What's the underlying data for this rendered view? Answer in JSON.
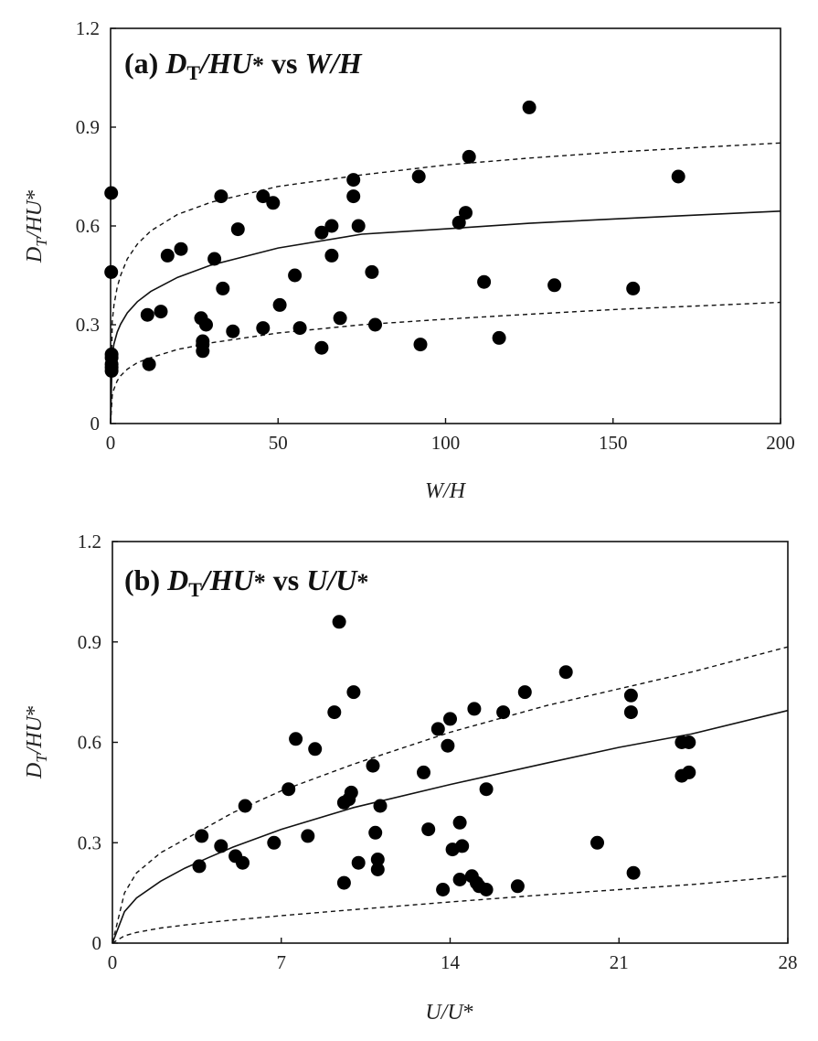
{
  "chart_data": [
    {
      "type": "scatter",
      "panel": "a",
      "title": "(a) DT/HU* vs W/H",
      "title_parts": {
        "prefix": "(a) ",
        "D": "D",
        "T": "T",
        "slash_HU": "/HU",
        "star": "*",
        "vs": " vs ",
        "x": "W/H"
      },
      "xlabel": "W/H",
      "ylabel": "DT/HU*",
      "ylabel_parts": {
        "D": "D",
        "T": "T",
        "rest": "/HU",
        "star": "*"
      },
      "xlim": [
        0,
        200
      ],
      "ylim": [
        0,
        1.2
      ],
      "xticks": [
        0,
        50,
        100,
        150,
        200
      ],
      "xtick_labels": [
        "0",
        "50",
        "100",
        "150",
        "200"
      ],
      "yticks": [
        0,
        0.3,
        0.6,
        0.9,
        1.2
      ],
      "ytick_labels": [
        "0",
        "0.3",
        "0.6",
        "0.9",
        "1.2"
      ],
      "grid": false,
      "marker_color": "#000000",
      "points": [
        [
          0.2,
          0.7
        ],
        [
          0.2,
          0.46
        ],
        [
          0.3,
          0.21
        ],
        [
          0.3,
          0.2
        ],
        [
          0.3,
          0.18
        ],
        [
          0.3,
          0.17
        ],
        [
          0.3,
          0.16
        ],
        [
          11,
          0.33
        ],
        [
          11.5,
          0.18
        ],
        [
          15,
          0.34
        ],
        [
          17,
          0.51
        ],
        [
          21,
          0.53
        ],
        [
          27,
          0.32
        ],
        [
          27.5,
          0.25
        ],
        [
          27.5,
          0.24
        ],
        [
          27.5,
          0.22
        ],
        [
          28.5,
          0.3
        ],
        [
          31,
          0.5
        ],
        [
          33,
          0.69
        ],
        [
          33.5,
          0.41
        ],
        [
          36.5,
          0.28
        ],
        [
          38,
          0.59
        ],
        [
          45.5,
          0.69
        ],
        [
          45.5,
          0.29
        ],
        [
          48.5,
          0.67
        ],
        [
          50.5,
          0.36
        ],
        [
          55,
          0.45
        ],
        [
          56.5,
          0.29
        ],
        [
          63,
          0.58
        ],
        [
          63,
          0.23
        ],
        [
          66,
          0.6
        ],
        [
          66,
          0.51
        ],
        [
          68.5,
          0.32
        ],
        [
          72.5,
          0.74
        ],
        [
          72.5,
          0.69
        ],
        [
          74,
          0.6
        ],
        [
          78,
          0.46
        ],
        [
          79,
          0.3
        ],
        [
          92,
          0.75
        ],
        [
          92.5,
          0.24
        ],
        [
          104,
          0.61
        ],
        [
          106,
          0.64
        ],
        [
          107,
          0.81
        ],
        [
          111.5,
          0.43
        ],
        [
          116,
          0.26
        ],
        [
          125,
          0.96
        ],
        [
          132.5,
          0.42
        ],
        [
          156,
          0.41
        ],
        [
          169.5,
          0.75
        ]
      ],
      "curves": [
        {
          "style": "solid",
          "x": [
            0,
            0.5,
            1,
            2,
            3,
            5,
            8,
            12,
            20,
            30,
            50,
            75,
            100,
            125,
            150,
            175,
            200
          ],
          "y": [
            0,
            0.209,
            0.242,
            0.278,
            0.302,
            0.336,
            0.37,
            0.401,
            0.444,
            0.481,
            0.533,
            0.575,
            0.591,
            0.608,
            0.621,
            0.633,
            0.645
          ]
        },
        {
          "style": "dashed",
          "x": [
            0,
            0.5,
            1,
            2,
            3,
            5,
            8,
            12,
            20,
            30,
            50,
            75,
            100,
            125,
            150,
            175,
            200
          ],
          "y": [
            0,
            0.31,
            0.36,
            0.415,
            0.45,
            0.5,
            0.545,
            0.585,
            0.635,
            0.672,
            0.72,
            0.755,
            0.785,
            0.806,
            0.824,
            0.838,
            0.852
          ]
        },
        {
          "style": "dashed",
          "x": [
            0,
            0.5,
            1,
            2,
            3,
            5,
            8,
            12,
            20,
            30,
            50,
            75,
            100,
            125,
            150,
            175,
            200
          ],
          "y": [
            0,
            0.085,
            0.105,
            0.13,
            0.145,
            0.165,
            0.185,
            0.2,
            0.225,
            0.245,
            0.275,
            0.3,
            0.317,
            0.332,
            0.346,
            0.357,
            0.368
          ]
        }
      ]
    },
    {
      "type": "scatter",
      "panel": "b",
      "title": "(b) DT/HU* vs U/U*",
      "title_parts": {
        "prefix": "(b) ",
        "D": "D",
        "T": "T",
        "slash_HU": "/HU",
        "star": "*",
        "vs": " vs ",
        "x": "U/U",
        "x_star": "*"
      },
      "xlabel": "U/U*",
      "xlabel_parts": {
        "base": "U/U",
        "star": "*"
      },
      "ylabel": "DT/HU*",
      "ylabel_parts": {
        "D": "D",
        "T": "T",
        "rest": "/HU",
        "star": "*"
      },
      "xlim": [
        0,
        28
      ],
      "ylim": [
        0,
        1.2
      ],
      "xticks": [
        0,
        7,
        14,
        21,
        28
      ],
      "xtick_labels": [
        "0",
        "7",
        "14",
        "21",
        "28"
      ],
      "yticks": [
        0,
        0.3,
        0.6,
        0.9,
        1.2
      ],
      "ytick_labels": [
        "0",
        "0.3",
        "0.6",
        "0.9",
        "1.2"
      ],
      "grid": false,
      "marker_color": "#000000",
      "points": [
        [
          3.7,
          0.32
        ],
        [
          3.6,
          0.23
        ],
        [
          4.5,
          0.29
        ],
        [
          5.1,
          0.26
        ],
        [
          5.4,
          0.24
        ],
        [
          5.5,
          0.41
        ],
        [
          6.7,
          0.3
        ],
        [
          7.3,
          0.46
        ],
        [
          7.6,
          0.61
        ],
        [
          8.1,
          0.32
        ],
        [
          8.4,
          0.58
        ],
        [
          9.2,
          0.69
        ],
        [
          9.4,
          0.96
        ],
        [
          9.6,
          0.18
        ],
        [
          9.6,
          0.42
        ],
        [
          9.8,
          0.43
        ],
        [
          9.9,
          0.45
        ],
        [
          10.0,
          0.75
        ],
        [
          10.2,
          0.24
        ],
        [
          10.8,
          0.53
        ],
        [
          10.9,
          0.33
        ],
        [
          11.0,
          0.25
        ],
        [
          11.0,
          0.22
        ],
        [
          11.1,
          0.41
        ],
        [
          12.9,
          0.51
        ],
        [
          13.1,
          0.34
        ],
        [
          13.5,
          0.64
        ],
        [
          13.7,
          0.16
        ],
        [
          13.9,
          0.59
        ],
        [
          14.0,
          0.67
        ],
        [
          14.1,
          0.28
        ],
        [
          14.4,
          0.19
        ],
        [
          14.4,
          0.36
        ],
        [
          14.5,
          0.29
        ],
        [
          14.9,
          0.2
        ],
        [
          15.0,
          0.7
        ],
        [
          15.1,
          0.18
        ],
        [
          15.2,
          0.17
        ],
        [
          15.5,
          0.46
        ],
        [
          15.5,
          0.16
        ],
        [
          16.2,
          0.69
        ],
        [
          16.8,
          0.17
        ],
        [
          17.1,
          0.75
        ],
        [
          18.8,
          0.81
        ],
        [
          20.1,
          0.3
        ],
        [
          21.5,
          0.74
        ],
        [
          21.5,
          0.69
        ],
        [
          21.6,
          0.21
        ],
        [
          23.6,
          0.6
        ],
        [
          23.9,
          0.6
        ],
        [
          23.6,
          0.5
        ],
        [
          23.9,
          0.51
        ]
      ],
      "curves": [
        {
          "style": "solid",
          "x": [
            0,
            0.5,
            1,
            2,
            3,
            4,
            5,
            7,
            10,
            14,
            18,
            21,
            24,
            28
          ],
          "y": [
            0,
            0.094,
            0.135,
            0.185,
            0.224,
            0.256,
            0.287,
            0.34,
            0.405,
            0.474,
            0.538,
            0.585,
            0.625,
            0.695
          ]
        },
        {
          "style": "dashed",
          "x": [
            0,
            0.5,
            1,
            2,
            3,
            4,
            5,
            7,
            10,
            14,
            18,
            21,
            24,
            28
          ],
          "y": [
            0,
            0.15,
            0.21,
            0.27,
            0.31,
            0.35,
            0.39,
            0.455,
            0.535,
            0.63,
            0.71,
            0.76,
            0.81,
            0.885
          ]
        },
        {
          "style": "dashed",
          "x": [
            0,
            0.5,
            1,
            2,
            3,
            4,
            5,
            7,
            10,
            14,
            18,
            21,
            24,
            28
          ],
          "y": [
            0,
            0.022,
            0.032,
            0.045,
            0.054,
            0.062,
            0.069,
            0.082,
            0.1,
            0.123,
            0.145,
            0.16,
            0.175,
            0.2
          ]
        }
      ]
    }
  ]
}
